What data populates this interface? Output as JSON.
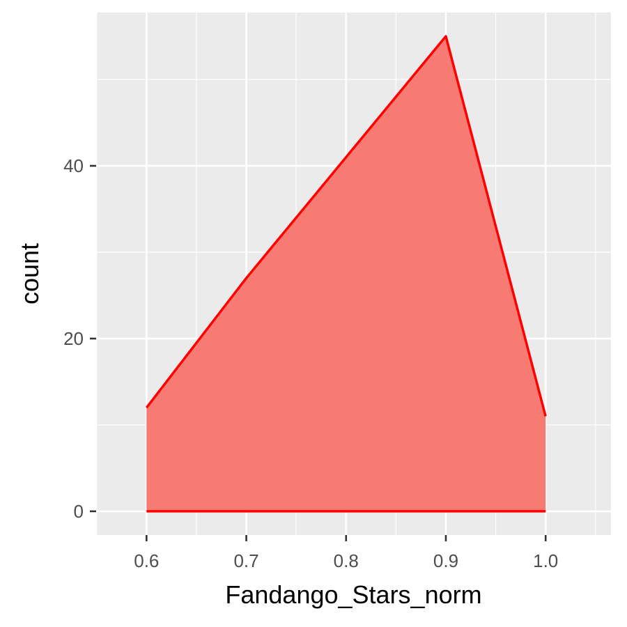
{
  "chart_data": {
    "type": "area",
    "title": "",
    "xlabel": "Fandango_Stars_norm",
    "ylabel": "count",
    "xlim": [
      0.5495,
      1.0655
    ],
    "ylim": [
      -2.75,
      57.75
    ],
    "grid": true,
    "x_ticks": [
      0.6,
      0.7,
      0.8,
      0.9,
      1.0
    ],
    "x_tick_labels": [
      "0.6",
      "0.7",
      "0.8",
      "0.9",
      "1.0"
    ],
    "y_ticks": [
      0,
      20,
      40
    ],
    "y_tick_labels": [
      "0",
      "20",
      "40"
    ],
    "x": [
      0.6,
      0.7,
      0.8,
      0.9,
      1.0
    ],
    "values": [
      12,
      27,
      41,
      55,
      11
    ],
    "colors": {
      "fill": "#f8766d",
      "line": "#ff0000",
      "panel": "#ebebeb",
      "grid": "#ffffff",
      "tick_text": "#4d4d4d"
    }
  }
}
